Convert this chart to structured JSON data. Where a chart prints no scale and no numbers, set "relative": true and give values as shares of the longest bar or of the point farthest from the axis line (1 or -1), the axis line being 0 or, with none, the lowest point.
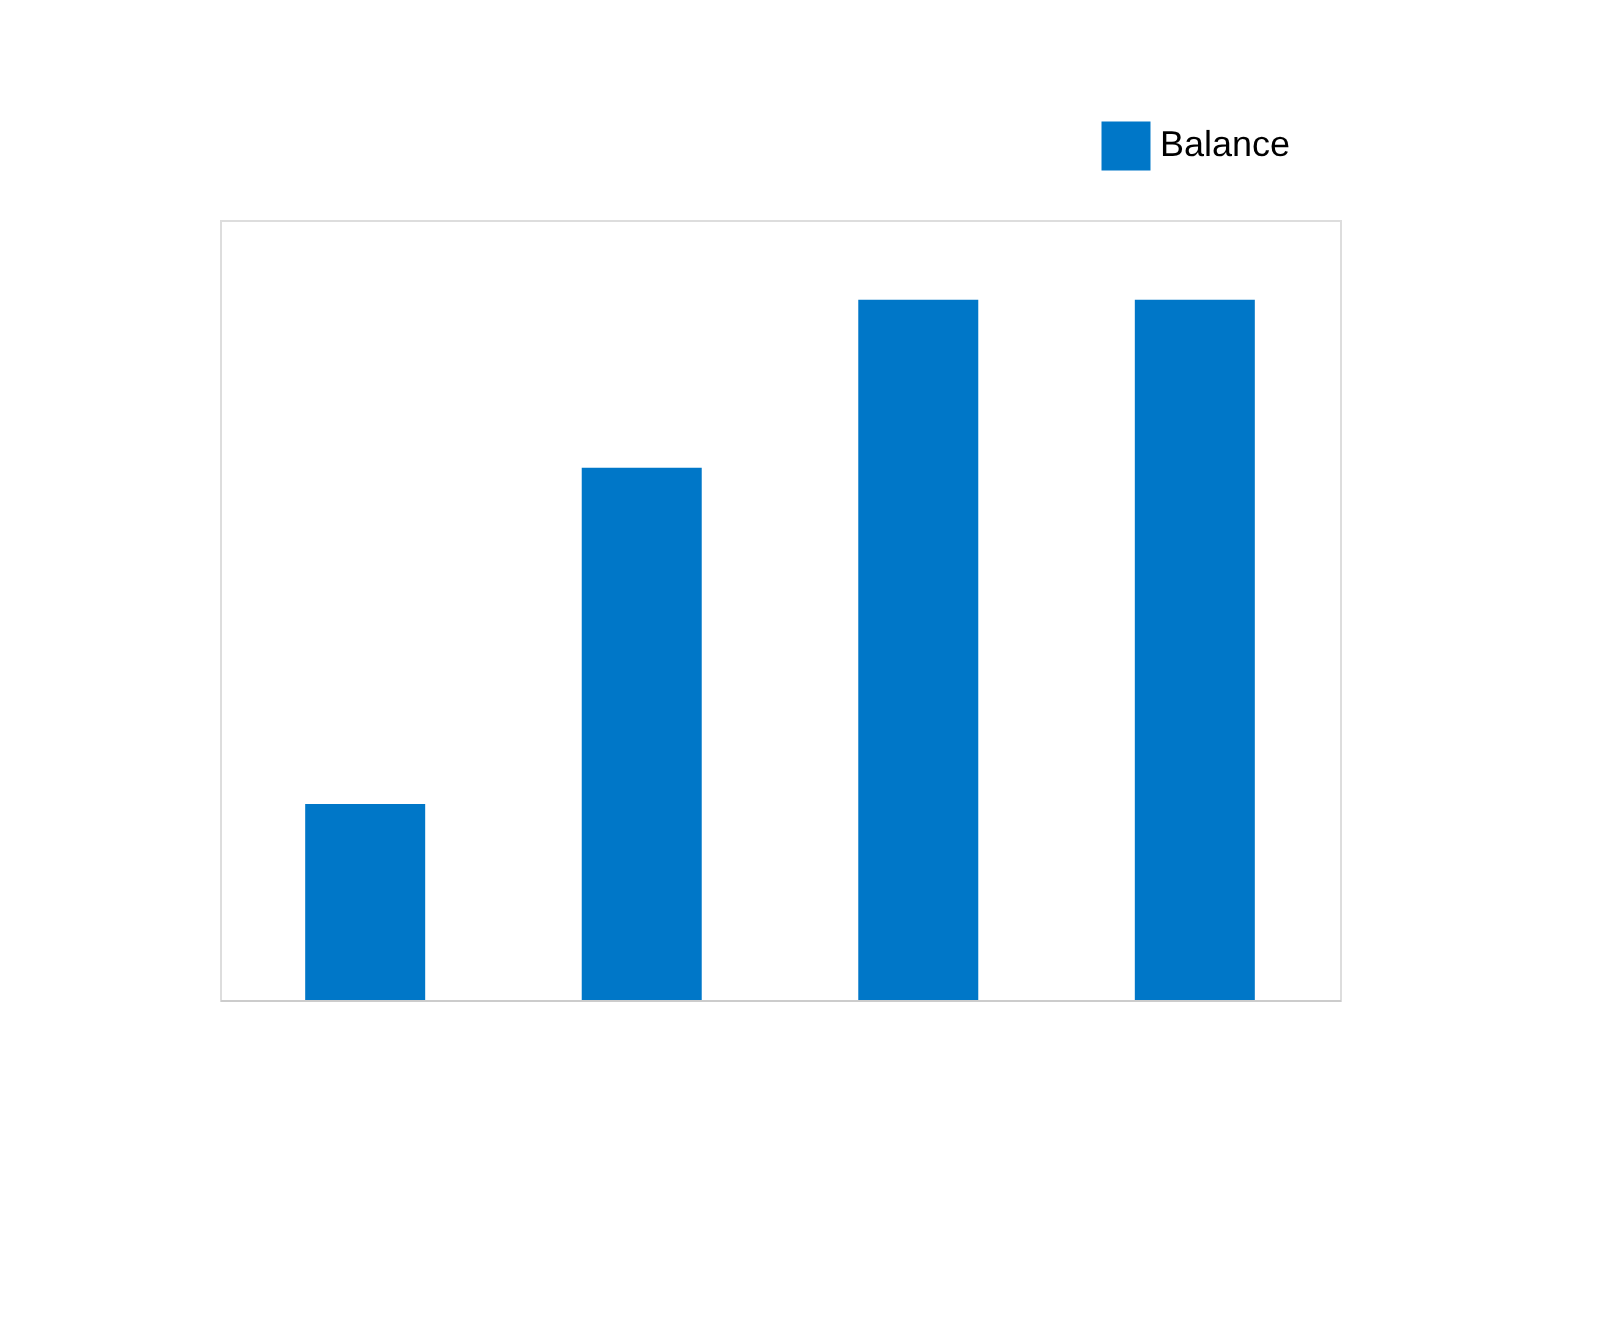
{
  "chart_data": {
    "type": "bar",
    "relative": true,
    "categories": [
      null,
      null,
      null,
      null
    ],
    "series": [
      {
        "name": "Balance",
        "color": "#0077c8",
        "values": [
          0.28,
          0.76,
          1,
          1
        ]
      }
    ],
    "legend": "top right"
  }
}
